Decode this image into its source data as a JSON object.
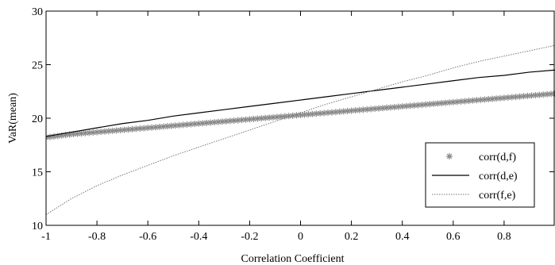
{
  "chart_data": {
    "type": "line",
    "xlabel": "Correlation Coefficient",
    "ylabel": "VaR(mean)",
    "xlim": [
      -1,
      1
    ],
    "ylim": [
      10,
      30
    ],
    "xticks": [
      -1,
      -0.8,
      -0.6,
      -0.4,
      -0.2,
      0,
      0.2,
      0.4,
      0.6,
      0.8
    ],
    "xtick_labels": [
      "-1",
      "-0.8",
      "-0.6",
      "-0.4",
      "-0.2",
      "0",
      "0.2",
      "0.4",
      "0.6",
      "0.8"
    ],
    "yticks": [
      10,
      15,
      20,
      25,
      30
    ],
    "ytick_labels": [
      "10",
      "15",
      "20",
      "25",
      "30"
    ],
    "grid": false,
    "legend_position": "right",
    "series": [
      {
        "name": "corr(d,f)",
        "style": "asterisk-markers",
        "color": "#888888",
        "x": [
          -1,
          -0.9,
          -0.8,
          -0.7,
          -0.6,
          -0.5,
          -0.4,
          -0.3,
          -0.2,
          -0.1,
          0,
          0.1,
          0.2,
          0.3,
          0.4,
          0.5,
          0.6,
          0.7,
          0.8,
          0.9,
          1
        ],
        "values": [
          18.2,
          18.5,
          18.7,
          18.9,
          19.1,
          19.3,
          19.5,
          19.7,
          19.9,
          20.1,
          20.3,
          20.5,
          20.7,
          20.9,
          21.1,
          21.3,
          21.5,
          21.7,
          21.9,
          22.1,
          22.3
        ]
      },
      {
        "name": "corr(d,e)",
        "style": "solid",
        "color": "#000000",
        "x": [
          -1,
          -0.9,
          -0.8,
          -0.7,
          -0.6,
          -0.5,
          -0.4,
          -0.3,
          -0.2,
          -0.1,
          0,
          0.1,
          0.2,
          0.3,
          0.4,
          0.5,
          0.6,
          0.7,
          0.8,
          0.9,
          1
        ],
        "values": [
          18.3,
          18.7,
          19.1,
          19.5,
          19.8,
          20.2,
          20.5,
          20.8,
          21.1,
          21.4,
          21.7,
          22.0,
          22.3,
          22.6,
          22.9,
          23.2,
          23.5,
          23.8,
          24.0,
          24.3,
          24.5
        ]
      },
      {
        "name": "corr(f,e)",
        "style": "dotted",
        "color": "#777777",
        "x": [
          -1,
          -0.9,
          -0.8,
          -0.7,
          -0.6,
          -0.5,
          -0.4,
          -0.3,
          -0.2,
          -0.1,
          0,
          0.1,
          0.2,
          0.3,
          0.4,
          0.5,
          0.6,
          0.7,
          0.8,
          0.9,
          1
        ],
        "values": [
          11.0,
          12.5,
          13.7,
          14.7,
          15.6,
          16.5,
          17.3,
          18.1,
          18.9,
          19.7,
          20.5,
          21.3,
          22.0,
          22.7,
          23.4,
          24.0,
          24.7,
          25.3,
          25.8,
          26.3,
          26.8
        ]
      }
    ]
  }
}
